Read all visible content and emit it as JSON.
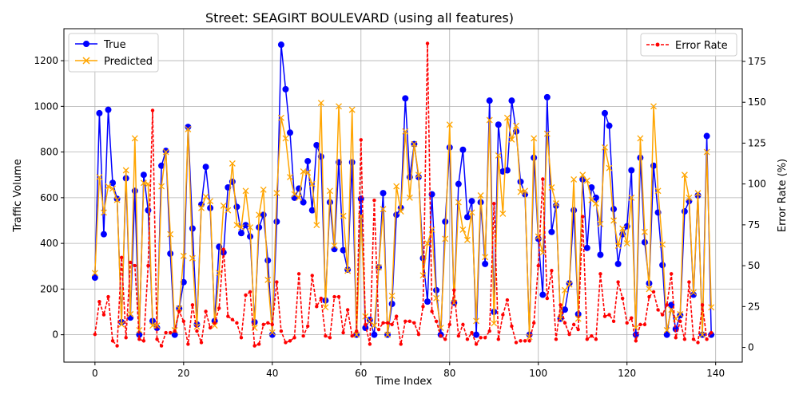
{
  "chart_data": {
    "type": "line",
    "title": "Street: SEAGIRT BOULEVARD (using all features)",
    "xlabel": "Time Index",
    "ylabel": "Traffic Volume",
    "ylabel_right": "Error Rate (%)",
    "xlim": [
      -7,
      146
    ],
    "ylim": [
      -120,
      1340
    ],
    "ylim_right": [
      -9,
      195
    ],
    "xticks": [
      0,
      20,
      40,
      60,
      80,
      100,
      120,
      140
    ],
    "yticks": [
      0,
      200,
      400,
      600,
      800,
      1000,
      1200
    ],
    "yticks_right": [
      0,
      25,
      50,
      75,
      100,
      125,
      150,
      175
    ],
    "grid": true,
    "legend_left": {
      "placement": "upper-left",
      "entries": [
        "True",
        "Predicted"
      ]
    },
    "legend_right": {
      "placement": "upper-right",
      "entries": [
        "Error Rate"
      ]
    },
    "colors": {
      "true": "#0000ff",
      "predicted": "#ffa500",
      "error": "#ff0000"
    },
    "x": [
      0,
      1,
      2,
      3,
      4,
      5,
      6,
      7,
      8,
      9,
      10,
      11,
      12,
      13,
      14,
      15,
      16,
      17,
      18,
      19,
      20,
      21,
      22,
      23,
      24,
      25,
      26,
      27,
      28,
      29,
      30,
      31,
      32,
      33,
      34,
      35,
      36,
      37,
      38,
      39,
      40,
      41,
      42,
      43,
      44,
      45,
      46,
      47,
      48,
      49,
      50,
      51,
      52,
      53,
      54,
      55,
      56,
      57,
      58,
      59,
      60,
      61,
      62,
      63,
      64,
      65,
      66,
      67,
      68,
      69,
      70,
      71,
      72,
      73,
      74,
      75,
      76,
      77,
      78,
      79,
      80,
      81,
      82,
      83,
      84,
      85,
      86,
      87,
      88,
      89,
      90,
      91,
      92,
      93,
      94,
      95,
      96,
      97,
      98,
      99,
      100,
      101,
      102,
      103,
      104,
      105,
      106,
      107,
      108,
      109,
      110,
      111,
      112,
      113,
      114,
      115,
      116,
      117,
      118,
      119,
      120,
      121,
      122,
      123,
      124,
      125,
      126,
      127,
      128,
      129,
      130,
      131,
      132,
      133,
      134,
      135,
      136,
      137,
      138,
      139
    ],
    "series": [
      {
        "name": "True",
        "axis": "left",
        "values": [
          250,
          970,
          440,
          985,
          665,
          595,
          55,
          685,
          75,
          630,
          0,
          700,
          545,
          60,
          30,
          740,
          805,
          355,
          0,
          115,
          230,
          910,
          465,
          45,
          570,
          735,
          555,
          60,
          385,
          360,
          645,
          670,
          560,
          445,
          480,
          430,
          55,
          470,
          525,
          325,
          0,
          495,
          1270,
          1075,
          885,
          600,
          640,
          580,
          760,
          545,
          830,
          780,
          150,
          580,
          375,
          755,
          370,
          285,
          755,
          0,
          595,
          30,
          65,
          0,
          295,
          620,
          0,
          135,
          525,
          555,
          1035,
          690,
          835,
          690,
          335,
          145,
          615,
          195,
          0,
          495,
          820,
          140,
          660,
          810,
          515,
          585,
          0,
          580,
          310,
          1025,
          100,
          920,
          715,
          720,
          1025,
          890,
          670,
          615,
          0,
          775,
          420,
          175,
          1040,
          450,
          565,
          70,
          110,
          225,
          545,
          90,
          680,
          380,
          645,
          600,
          350,
          970,
          915,
          550,
          310,
          440,
          475,
          720,
          0,
          775,
          405,
          225,
          740,
          535,
          305,
          0,
          130,
          25,
          85,
          540,
          585,
          175,
          610,
          0,
          870,
          0
        ]
      },
      {
        "name": "Predicted",
        "axis": "left",
        "values": [
          270,
          690,
          535,
          650,
          640,
          590,
          45,
          720,
          90,
          860,
          20,
          665,
          660,
          40,
          40,
          650,
          800,
          440,
          20,
          115,
          345,
          900,
          335,
          35,
          555,
          605,
          585,
          40,
          270,
          565,
          545,
          750,
          480,
          470,
          630,
          470,
          30,
          525,
          635,
          240,
          10,
          620,
          950,
          860,
          690,
          615,
          600,
          715,
          710,
          660,
          480,
          1015,
          120,
          630,
          390,
          1000,
          520,
          280,
          985,
          0,
          520,
          80,
          60,
          40,
          295,
          550,
          0,
          170,
          650,
          540,
          890,
          600,
          835,
          700,
          260,
          400,
          460,
          160,
          30,
          420,
          920,
          140,
          580,
          460,
          415,
          535,
          60,
          610,
          340,
          940,
          50,
          785,
          530,
          950,
          855,
          915,
          625,
          630,
          -10,
          860,
          430,
          360,
          880,
          645,
          575,
          70,
          195,
          220,
          680,
          70,
          700,
          675,
          590,
          575,
          485,
          820,
          730,
          500,
          390,
          465,
          400,
          600,
          30,
          860,
          450,
          200,
          1000,
          630,
          395,
          20,
          110,
          70,
          90,
          700,
          600,
          185,
          620,
          0,
          800,
          120
        ]
      },
      {
        "name": "Error Rate",
        "axis": "right",
        "values": [
          8,
          28,
          20,
          31,
          4,
          1,
          55,
          6,
          52,
          50,
          5,
          4,
          50,
          145,
          5,
          1,
          9,
          9,
          10,
          22,
          16,
          2,
          26,
          10,
          3,
          22,
          12,
          15,
          24,
          60,
          19,
          17,
          15,
          6,
          32,
          34,
          1,
          2,
          14,
          15,
          14,
          40,
          10,
          3,
          4,
          6,
          45,
          7,
          13,
          44,
          25,
          30,
          7,
          6,
          31,
          31,
          9,
          23,
          7,
          10,
          127,
          14,
          2,
          90,
          11,
          15,
          15,
          14,
          19,
          2,
          16,
          16,
          15,
          8,
          25,
          186,
          22,
          16,
          7,
          5,
          14,
          35,
          7,
          14,
          5,
          9,
          2,
          6,
          6,
          10,
          88,
          5,
          20,
          29,
          13,
          3,
          4,
          4,
          4,
          15,
          50,
          103,
          30,
          47,
          5,
          26,
          15,
          8,
          14,
          11,
          80,
          5,
          7,
          5,
          45,
          19,
          20,
          16,
          40,
          30,
          15,
          18,
          4,
          14,
          14,
          31,
          34,
          23,
          20,
          26,
          45,
          6,
          16,
          5,
          40,
          5,
          3,
          26,
          5,
          9
        ]
      }
    ]
  }
}
